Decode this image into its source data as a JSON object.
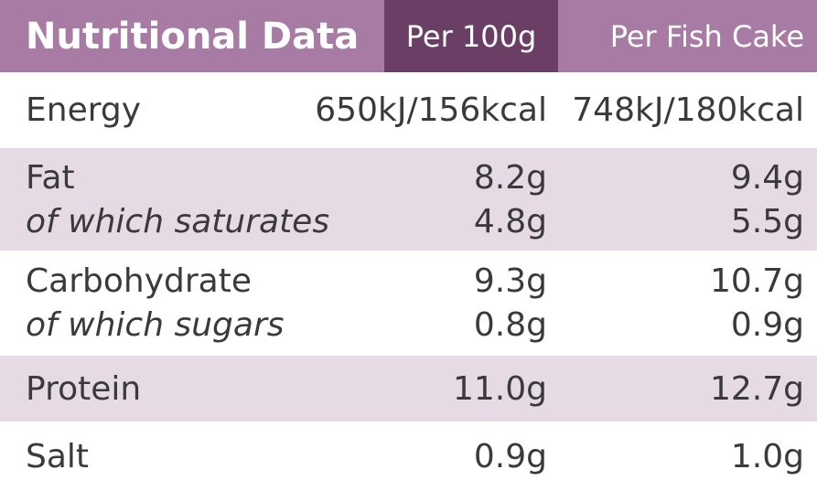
{
  "header": {
    "title": "Nutritional Data",
    "col1": "Per 100g",
    "col2": "Per Fish Cake"
  },
  "rows": {
    "energy": {
      "label": "Energy",
      "per100": "650kJ/156kcal",
      "perCake": "748kJ/180kcal"
    },
    "fat": {
      "label": "Fat",
      "per100": "8.2g",
      "perCake": "9.4g"
    },
    "saturates": {
      "label": "of which saturates",
      "per100": "4.8g",
      "perCake": "5.5g"
    },
    "carbohydrate": {
      "label": "Carbohydrate",
      "per100": "9.3g",
      "perCake": "10.7g"
    },
    "sugars": {
      "label": "of which sugars",
      "per100": "0.8g",
      "perCake": "0.9g"
    },
    "protein": {
      "label": "Protein",
      "per100": "11.0g",
      "perCake": "12.7g"
    },
    "salt": {
      "label": "Salt",
      "per100": "0.9g",
      "perCake": "1.0g"
    }
  },
  "colors": {
    "header_bg": "#a77ba3",
    "header_highlight": "#6b3f65",
    "row_shade": "#e6dae4",
    "text": "#3a3a3a"
  }
}
